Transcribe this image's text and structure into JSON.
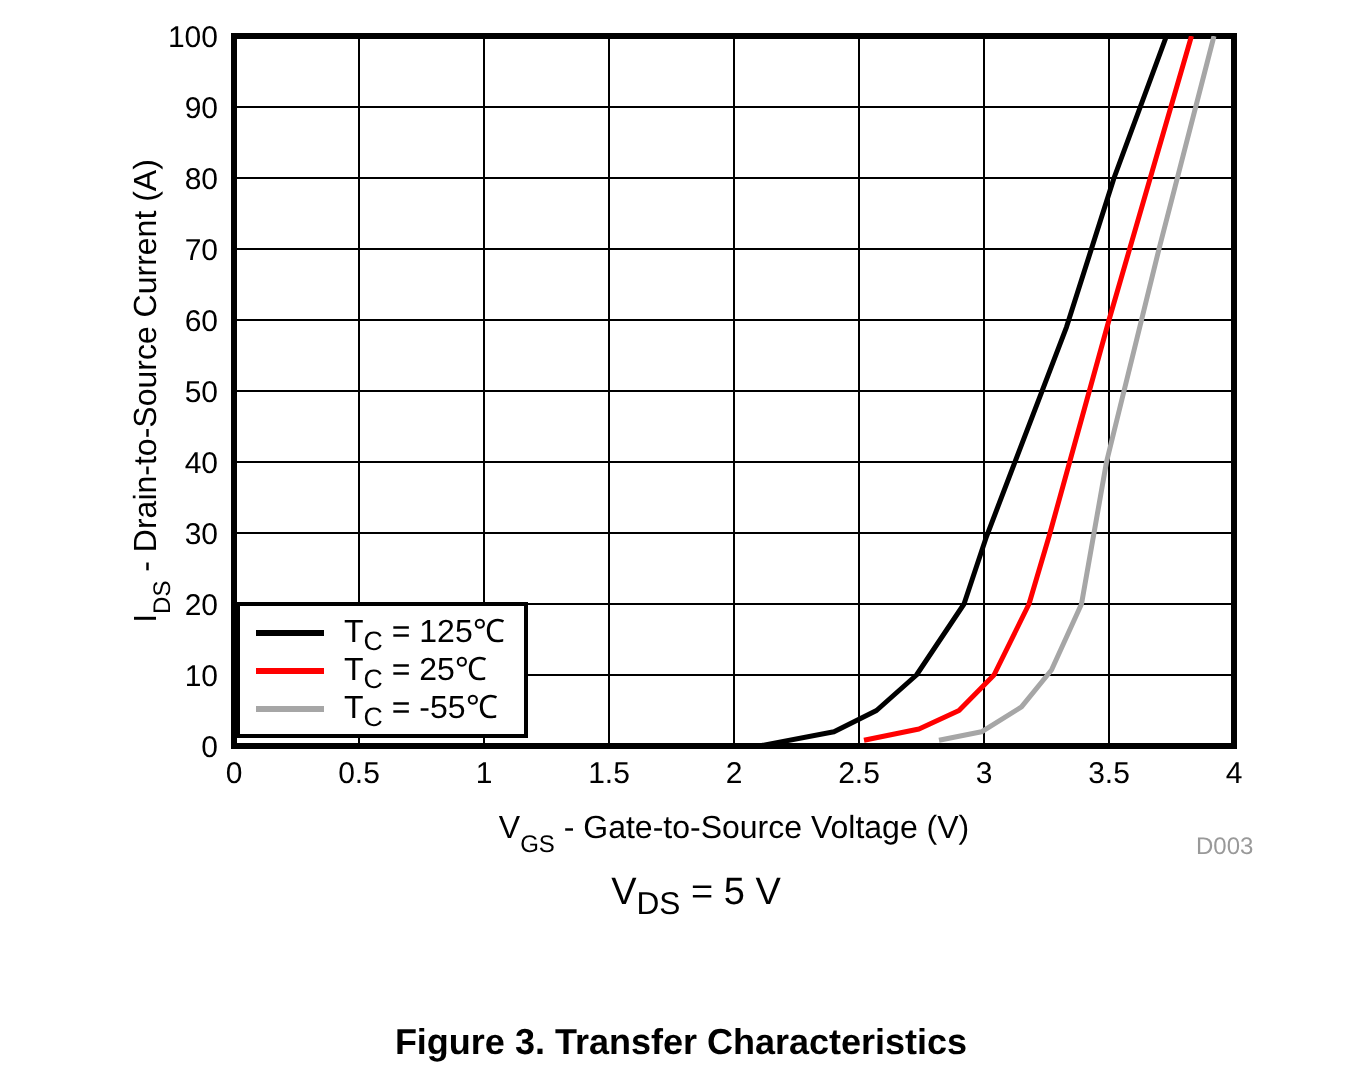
{
  "chart_data": {
    "type": "line",
    "title": "Figure 3. Transfer Characteristics",
    "xlabel": "V$_{GS}$ - Gate-to-Source Voltage (V)",
    "ylabel": "I$_{DS}$ - Drain-to-Source Current (A)",
    "annotations": [
      "V$_{DS}$ = 5 V",
      "D003"
    ],
    "xlim": [
      0,
      4
    ],
    "xticks": [
      0,
      0.5,
      1,
      1.5,
      2,
      2.5,
      3,
      3.5,
      4
    ],
    "ylim": [
      0,
      100
    ],
    "yticks": [
      0,
      10,
      20,
      30,
      40,
      50,
      60,
      70,
      80,
      90,
      100
    ],
    "grid": true,
    "legend": "bottom left",
    "marker": "none",
    "line_style": "solid",
    "series": [
      {
        "name": "T$_{C}$ = 125℃",
        "color": "#000000",
        "x": [
          2.1,
          2.4,
          2.57,
          2.73,
          2.92,
          3.01,
          3.33,
          3.52,
          3.73
        ],
        "values": [
          0,
          2,
          5,
          10,
          20,
          29.5,
          59,
          80,
          100
        ]
      },
      {
        "name": "T$_{C}$ = 25℃",
        "color": "#ff0000",
        "x": [
          2.52,
          2.74,
          2.9,
          3.04,
          3.18,
          3.26,
          3.5,
          3.83
        ],
        "values": [
          0.8,
          2.4,
          5,
          10,
          20,
          29.5,
          60,
          100
        ]
      },
      {
        "name": "T$_{C}$ = -55℃",
        "color": "#a6a6a6",
        "x": [
          2.82,
          2.99,
          3.15,
          3.27,
          3.39,
          3.49,
          3.7,
          3.92
        ],
        "values": [
          0.8,
          2,
          5.5,
          10.7,
          20,
          40,
          70,
          100
        ]
      }
    ]
  }
}
